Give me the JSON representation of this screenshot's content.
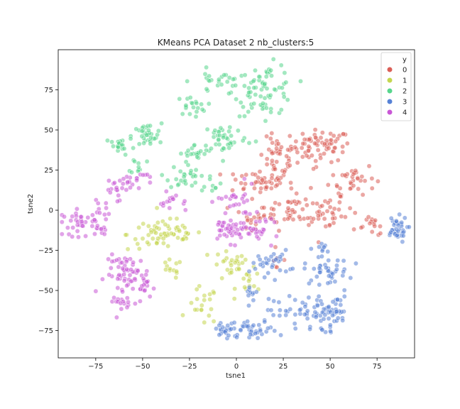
{
  "chart_data": {
    "type": "scatter",
    "title": "KMeans PCA Dataset 2 nb_clusters:5",
    "xlabel": "tsne1",
    "ylabel": "tsne2",
    "xlim": [
      -95,
      95
    ],
    "ylim": [
      -92,
      100
    ],
    "xticks": [
      -75,
      -50,
      -25,
      0,
      25,
      50,
      75
    ],
    "yticks": [
      -75,
      -50,
      -25,
      0,
      25,
      50,
      75
    ],
    "grid": false,
    "legend": {
      "title": "y",
      "placement": "top-right"
    },
    "colors": {
      "0": "#db5f57",
      "1": "#c4d64f",
      "2": "#57d68d",
      "3": "#5782d6",
      "4": "#c957d6"
    },
    "series": [
      {
        "name": "0",
        "clusters": [
          {
            "cx": 45,
            "cy": 40,
            "sx": 8,
            "sy": 5,
            "n": 70
          },
          {
            "cx": 22,
            "cy": 33,
            "sx": 5,
            "sy": 6,
            "n": 40
          },
          {
            "cx": 12,
            "cy": 18,
            "sx": 9,
            "sy": 4,
            "n": 45
          },
          {
            "cx": 62,
            "cy": 20,
            "sx": 6,
            "sy": 5,
            "n": 35
          },
          {
            "cx": 30,
            "cy": 0,
            "sx": 12,
            "sy": 6,
            "n": 60
          },
          {
            "cx": 50,
            "cy": -3,
            "sx": 6,
            "sy": 5,
            "n": 25
          },
          {
            "cx": 10,
            "cy": -5,
            "sx": 5,
            "sy": 3,
            "n": 15
          },
          {
            "cx": 73,
            "cy": -10,
            "sx": 4,
            "sy": 3,
            "n": 15
          },
          {
            "cx": 20,
            "cy": -30,
            "sx": 3,
            "sy": 3,
            "n": 6
          }
        ]
      },
      {
        "name": "1",
        "clusters": [
          {
            "cx": -38,
            "cy": -15,
            "sx": 10,
            "sy": 5,
            "n": 65
          },
          {
            "cx": -35,
            "cy": -37,
            "sx": 3,
            "sy": 3,
            "n": 12
          },
          {
            "cx": -3,
            "cy": -35,
            "sx": 5,
            "sy": 5,
            "n": 25
          },
          {
            "cx": -18,
            "cy": -60,
            "sx": 4,
            "sy": 6,
            "n": 20
          },
          {
            "cx": 8,
            "cy": -45,
            "sx": 4,
            "sy": 4,
            "n": 15
          }
        ]
      },
      {
        "name": "2",
        "clusters": [
          {
            "cx": 15,
            "cy": 75,
            "sx": 8,
            "sy": 8,
            "n": 75
          },
          {
            "cx": -10,
            "cy": 80,
            "sx": 7,
            "sy": 4,
            "n": 25
          },
          {
            "cx": -24,
            "cy": 65,
            "sx": 4,
            "sy": 3,
            "n": 20
          },
          {
            "cx": -48,
            "cy": 46,
            "sx": 4,
            "sy": 4,
            "n": 35
          },
          {
            "cx": -62,
            "cy": 40,
            "sx": 4,
            "sy": 3,
            "n": 20
          },
          {
            "cx": -6,
            "cy": 45,
            "sx": 6,
            "sy": 5,
            "n": 40
          },
          {
            "cx": -22,
            "cy": 35,
            "sx": 4,
            "sy": 3,
            "n": 20
          },
          {
            "cx": -28,
            "cy": 21,
            "sx": 4,
            "sy": 4,
            "n": 25
          },
          {
            "cx": -52,
            "cy": 28,
            "sx": 2,
            "sy": 3,
            "n": 10
          },
          {
            "cx": -14,
            "cy": 18,
            "sx": 3,
            "sy": 3,
            "n": 10
          }
        ]
      },
      {
        "name": "3",
        "clusters": [
          {
            "cx": 85,
            "cy": -12,
            "sx": 3,
            "sy": 4,
            "n": 40
          },
          {
            "cx": 40,
            "cy": -65,
            "sx": 7,
            "sy": 6,
            "n": 55
          },
          {
            "cx": 52,
            "cy": -62,
            "sx": 4,
            "sy": 6,
            "n": 30
          },
          {
            "cx": 10,
            "cy": -75,
            "sx": 6,
            "sy": 3,
            "n": 35
          },
          {
            "cx": -5,
            "cy": -75,
            "sx": 4,
            "sy": 3,
            "n": 25
          },
          {
            "cx": 18,
            "cy": -33,
            "sx": 5,
            "sy": 4,
            "n": 30
          },
          {
            "cx": 48,
            "cy": -38,
            "sx": 6,
            "sy": 4,
            "n": 40
          },
          {
            "cx": 45,
            "cy": -24,
            "sx": 4,
            "sy": 2,
            "n": 10
          },
          {
            "cx": 8,
            "cy": -50,
            "sx": 3,
            "sy": 3,
            "n": 10
          },
          {
            "cx": 22,
            "cy": -62,
            "sx": 3,
            "sy": 3,
            "n": 8
          }
        ]
      },
      {
        "name": "4",
        "clusters": [
          {
            "cx": -58,
            "cy": -40,
            "sx": 6,
            "sy": 6,
            "n": 60
          },
          {
            "cx": -83,
            "cy": -8,
            "sx": 5,
            "sy": 4,
            "n": 35
          },
          {
            "cx": -73,
            "cy": -5,
            "sx": 3,
            "sy": 6,
            "n": 20
          },
          {
            "cx": -60,
            "cy": -58,
            "sx": 3,
            "sy": 3,
            "n": 15
          },
          {
            "cx": -48,
            "cy": -48,
            "sx": 3,
            "sy": 4,
            "n": 15
          },
          {
            "cx": -63,
            "cy": 15,
            "sx": 4,
            "sy": 4,
            "n": 25
          },
          {
            "cx": -52,
            "cy": 20,
            "sx": 3,
            "sy": 2,
            "n": 10
          },
          {
            "cx": -33,
            "cy": 5,
            "sx": 4,
            "sy": 3,
            "n": 15
          },
          {
            "cx": -3,
            "cy": -12,
            "sx": 6,
            "sy": 4,
            "n": 45
          },
          {
            "cx": 13,
            "cy": -12,
            "sx": 5,
            "sy": 4,
            "n": 25
          },
          {
            "cx": 0,
            "cy": 5,
            "sx": 5,
            "sy": 5,
            "n": 25
          }
        ]
      }
    ]
  }
}
